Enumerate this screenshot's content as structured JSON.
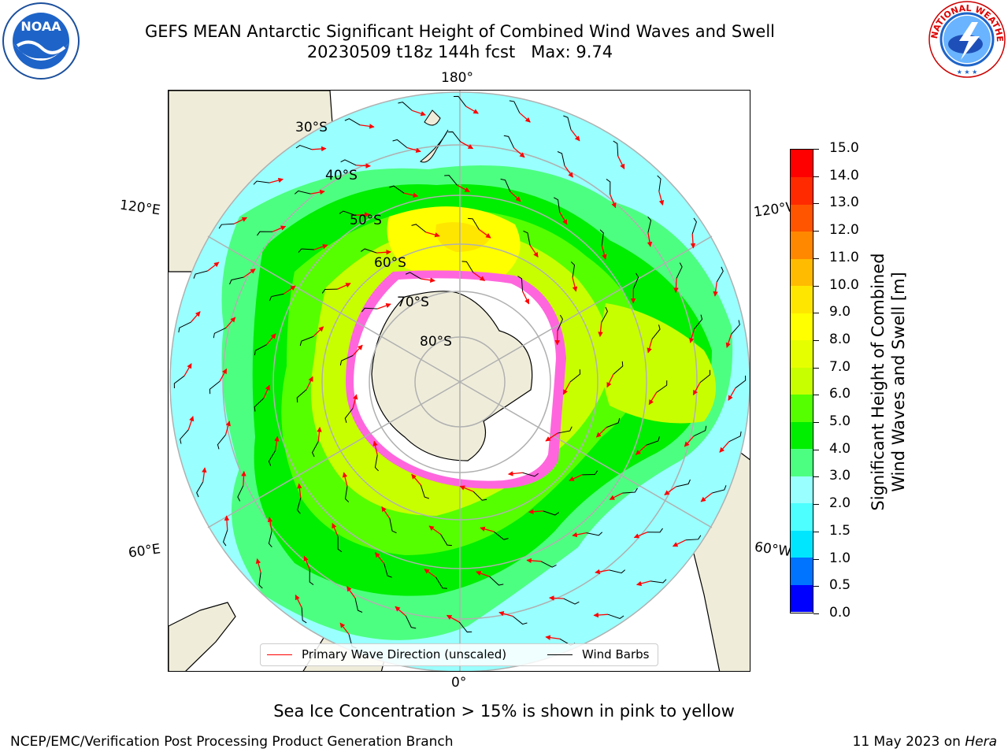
{
  "title": {
    "line1": "GEFS MEAN Antarctic Significant Height of Combined Wind Waves and Swell",
    "line2": "20230509 t18z 144h fcst   Max: 9.74"
  },
  "logos": {
    "left": "NOAA",
    "right": "NATIONAL WEATHER SERVICE"
  },
  "map": {
    "projection": "south-polar-stereographic",
    "lon_labels": {
      "top": "180°",
      "bottom": "0°",
      "upper_left": "120°E",
      "lower_left": "60°E",
      "upper_right": "120°W",
      "lower_right": "60°W"
    },
    "lat_labels": [
      "30°S",
      "40°S",
      "50°S",
      "60°S",
      "70°S",
      "80°S"
    ],
    "colors": {
      "land": "#efedda",
      "ice_edge": "#ff44dd",
      "wave_arrows": "#ff0000",
      "grid": "#b0b0b0"
    },
    "legend": {
      "primary_wave": "Primary Wave Direction (unscaled)",
      "wind_barbs": "Wind Barbs"
    }
  },
  "colorbar": {
    "title_line1": "Significant Height of Combined",
    "title_line2": "Wind Waves and Swell [m]",
    "ticks": [
      "0.0",
      "0.5",
      "1.0",
      "1.5",
      "2.0",
      "3.0",
      "4.0",
      "5.0",
      "6.0",
      "7.0",
      "8.0",
      "9.0",
      "10.0",
      "11.0",
      "12.0",
      "13.0",
      "14.0",
      "15.0"
    ],
    "colors": [
      "#0000ff",
      "#0073ff",
      "#00e6ff",
      "#4dffff",
      "#99ffff",
      "#4dff80",
      "#00ee00",
      "#55ff00",
      "#c8ff00",
      "#e6ff00",
      "#ffff00",
      "#ffe600",
      "#ffbb00",
      "#ff8800",
      "#ff5500",
      "#ff2a00",
      "#ff0000"
    ]
  },
  "note": "Sea Ice Concentration > 15% is shown in pink to yellow",
  "footer": {
    "left": "NCEP/EMC/Verification Post Processing Product Generation Branch",
    "date": "11 May 2023 on ",
    "machine": "Hera"
  }
}
